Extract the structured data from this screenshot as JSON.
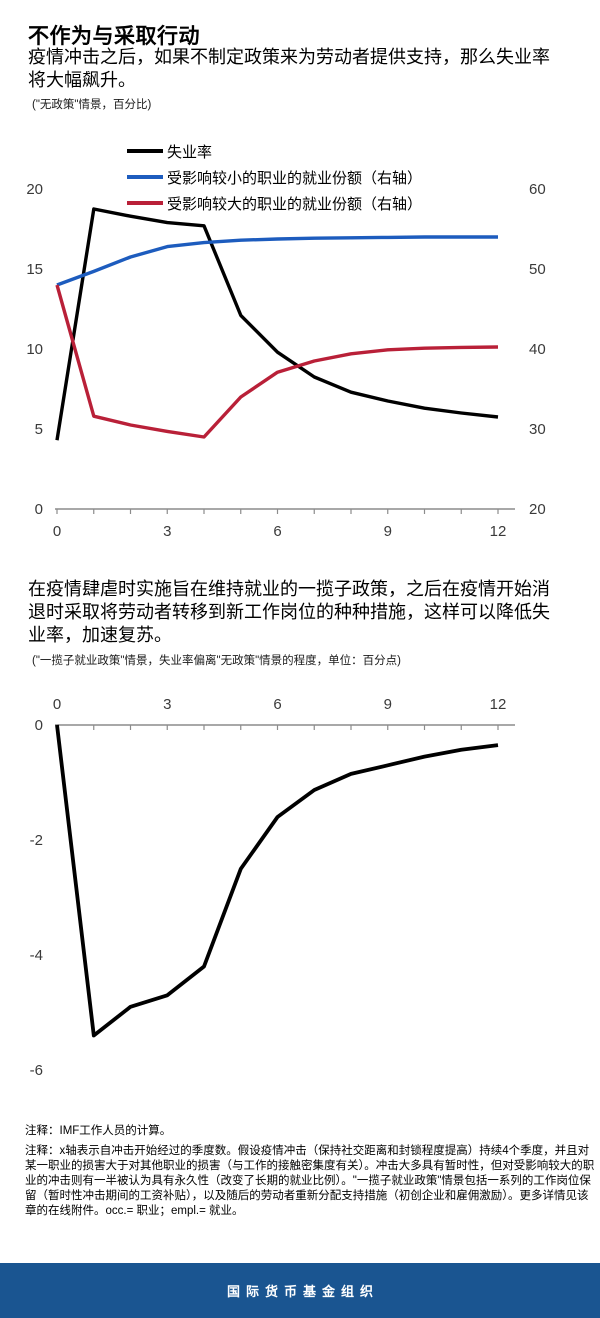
{
  "header": {
    "title": "不作为与采取行动",
    "subtitle": "疫情冲击之后，如果不制定政策来为劳动者提供支持，那么失业率将大幅飙升。",
    "caption": "(\"无政策\"情景，百分比)"
  },
  "middle": {
    "heading": "在疫情肆虐时实施旨在维持就业的一揽子政策，之后在疫情开始消退时采取将劳动者转移到新工作岗位的种种措施，这样可以降低失业率，加速复苏。",
    "caption": "(\"一揽子就业政策\"情景，失业率偏离\"无政策\"情景的程度，单位：百分点)"
  },
  "notes": {
    "line1": "注释：IMF工作人员的计算。",
    "line2": "注释：x轴表示自冲击开始经过的季度数。假设疫情冲击（保持社交距离和封锁程度提高）持续4个季度，并且对某一职业的损害大于对其他职业的损害（与工作的接触密集度有关）。冲击大多具有暂时性，但对受影响较大的职业的冲击则有一半被认为具有永久性（改变了长期的就业比例）。\"一揽子就业政策\"情景包括一系列的工作岗位保留（暂时性冲击期间的工资补贴），以及随后的劳动者重新分配支持措施（初创企业和雇佣激励）。更多详情见该章的在线附件。occ.= 职业；empl.= 就业。"
  },
  "footer": {
    "label": "国际货币基金组织",
    "bar_color": "#1a5591"
  },
  "colors": {
    "black": "#000000",
    "blue": "#1d5cbe",
    "red": "#b92038",
    "axis_line": "#8c8c8c",
    "tick_text": "#3a3a3a"
  },
  "chart_data": [
    {
      "type": "line",
      "subtitle": "(\"无政策\"情景，百分比)",
      "x": [
        0,
        1,
        2,
        3,
        4,
        5,
        6,
        7,
        8,
        9,
        10,
        11,
        12
      ],
      "x_ticks": [
        0,
        3,
        6,
        9,
        12
      ],
      "y_left_ticks": [
        0,
        5,
        10,
        15,
        20
      ],
      "y_right_ticks": [
        20,
        30,
        40,
        50,
        60
      ],
      "y_left_range": [
        0,
        20
      ],
      "y_right_range": [
        20,
        60
      ],
      "legend_position": "top",
      "grid": false,
      "series": [
        {
          "name": "失业率",
          "axis": "left",
          "color": "#000000",
          "values": [
            4.3,
            18.75,
            18.3,
            17.9,
            17.7,
            12.1,
            9.8,
            8.25,
            7.3,
            6.75,
            6.3,
            6.0,
            5.75
          ]
        },
        {
          "name": "受影响较小的职业的就业份额（右轴）",
          "axis": "right",
          "color": "#1d5cbe",
          "values": [
            48.0,
            49.7,
            51.5,
            52.8,
            53.3,
            53.6,
            53.75,
            53.85,
            53.9,
            53.95,
            54.0,
            54.0,
            54.0
          ]
        },
        {
          "name": "受影响较大的职业的就业份额（右轴）",
          "axis": "right",
          "color": "#b92038",
          "values": [
            48.0,
            31.6,
            30.5,
            29.7,
            29.0,
            34.0,
            37.1,
            38.5,
            39.4,
            39.9,
            40.1,
            40.2,
            40.25
          ]
        }
      ]
    },
    {
      "type": "line",
      "subtitle": "(\"一揽子就业政策\"情景，失业率偏离\"无政策\"情景的程度，单位：百分点)",
      "x": [
        0,
        1,
        2,
        3,
        4,
        5,
        6,
        7,
        8,
        9,
        10,
        11,
        12
      ],
      "x_ticks": [
        0,
        3,
        6,
        9,
        12
      ],
      "y_ticks": [
        0,
        -2,
        -4,
        -6
      ],
      "y_range": [
        -6.5,
        0
      ],
      "grid": false,
      "series": [
        {
          "name": "失业率偏离\"无政策\"情景的程度",
          "axis": "left",
          "color": "#000000",
          "values": [
            0,
            -5.4,
            -4.9,
            -4.7,
            -4.2,
            -2.5,
            -1.6,
            -1.13,
            -0.85,
            -0.7,
            -0.55,
            -0.43,
            -0.35
          ]
        }
      ]
    }
  ]
}
